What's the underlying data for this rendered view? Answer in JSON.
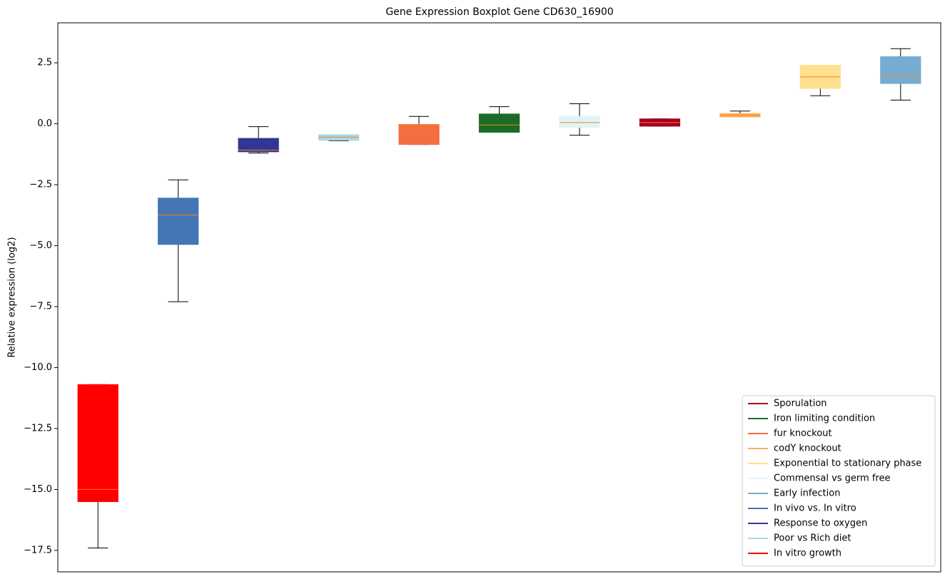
{
  "chart_data": {
    "type": "boxplot",
    "title": "Gene Expression Boxplot Gene CD630_16900",
    "ylabel": "Relative expression (log2)",
    "ylim": [
      -18.38,
      4.14
    ],
    "yticks": [
      {
        "value": -17.5,
        "label": "−17.5"
      },
      {
        "value": -15,
        "label": "−15.0"
      },
      {
        "value": -12.5,
        "label": "−12.5"
      },
      {
        "value": -10,
        "label": "−10.0"
      },
      {
        "value": -7.5,
        "label": "−7.5"
      },
      {
        "value": -5,
        "label": "−5.0"
      },
      {
        "value": -2.5,
        "label": "−2.5"
      },
      {
        "value": 0,
        "label": "0.0"
      },
      2.5
    ],
    "median_color": "#ff7f0e",
    "boxes": [
      {
        "color": "#ff0000",
        "min": -17.4,
        "q1": -15.5,
        "median": -15.0,
        "q3": -10.7,
        "max": -10.7
      },
      {
        "color": "#4575b4",
        "min": -7.3,
        "q1": -4.95,
        "median": -3.75,
        "q3": -3.05,
        "max": -2.3
      },
      {
        "color": "#313695",
        "min": -1.2,
        "q1": -1.15,
        "median": -1.08,
        "q3": -0.6,
        "max": -0.12
      },
      {
        "color": "#abd9e9",
        "min": -0.7,
        "q1": -0.68,
        "median": -0.55,
        "q3": -0.45,
        "max": -0.45
      },
      {
        "color": "#f46d43",
        "min": -0.85,
        "q1": -0.85,
        "median": -0.05,
        "q3": -0.03,
        "max": 0.3
      },
      {
        "color": "#1a6b28",
        "min": -0.35,
        "q1": -0.35,
        "median": -0.05,
        "q3": 0.4,
        "max": 0.7
      },
      {
        "color": "#e0f3f8",
        "min": -0.47,
        "q1": -0.15,
        "median": 0.05,
        "q3": 0.3,
        "max": 0.82
      },
      {
        "color": "#a50026",
        "min": -0.1,
        "q1": -0.1,
        "median": 0.05,
        "q3": 0.2,
        "max": 0.2
      },
      {
        "color": "#fdae61",
        "min": 0.28,
        "q1": 0.28,
        "median": 0.35,
        "q3": 0.42,
        "max": 0.52
      },
      {
        "color": "#fee090",
        "min": 1.15,
        "q1": 1.45,
        "median": 1.92,
        "q3": 2.4,
        "max": 2.4
      },
      {
        "color": "#74add1",
        "min": 0.97,
        "q1": 1.65,
        "median": 1.95,
        "q3": 2.75,
        "max": 3.08
      }
    ],
    "legend_position": "lower right",
    "legend": [
      {
        "name": "Sporulation",
        "color": "#a50026"
      },
      {
        "name": "Iron limiting condition",
        "color": "#1a6b28"
      },
      {
        "name": "fur knockout",
        "color": "#f46d43"
      },
      {
        "name": "codY knockout",
        "color": "#fdae61"
      },
      {
        "name": "Exponential to stationary phase",
        "color": "#fee090"
      },
      {
        "name": "Commensal vs germ free",
        "color": "#e0f3f8"
      },
      {
        "name": "Early infection",
        "color": "#74add1"
      },
      {
        "name": "In vivo vs. In vitro",
        "color": "#4575b4"
      },
      {
        "name": "Response to oxygen",
        "color": "#313695"
      },
      {
        "name": "Poor vs Rich diet",
        "color": "#abd9e9"
      },
      {
        "name": "In vitro growth",
        "color": "#ff0000"
      }
    ]
  }
}
